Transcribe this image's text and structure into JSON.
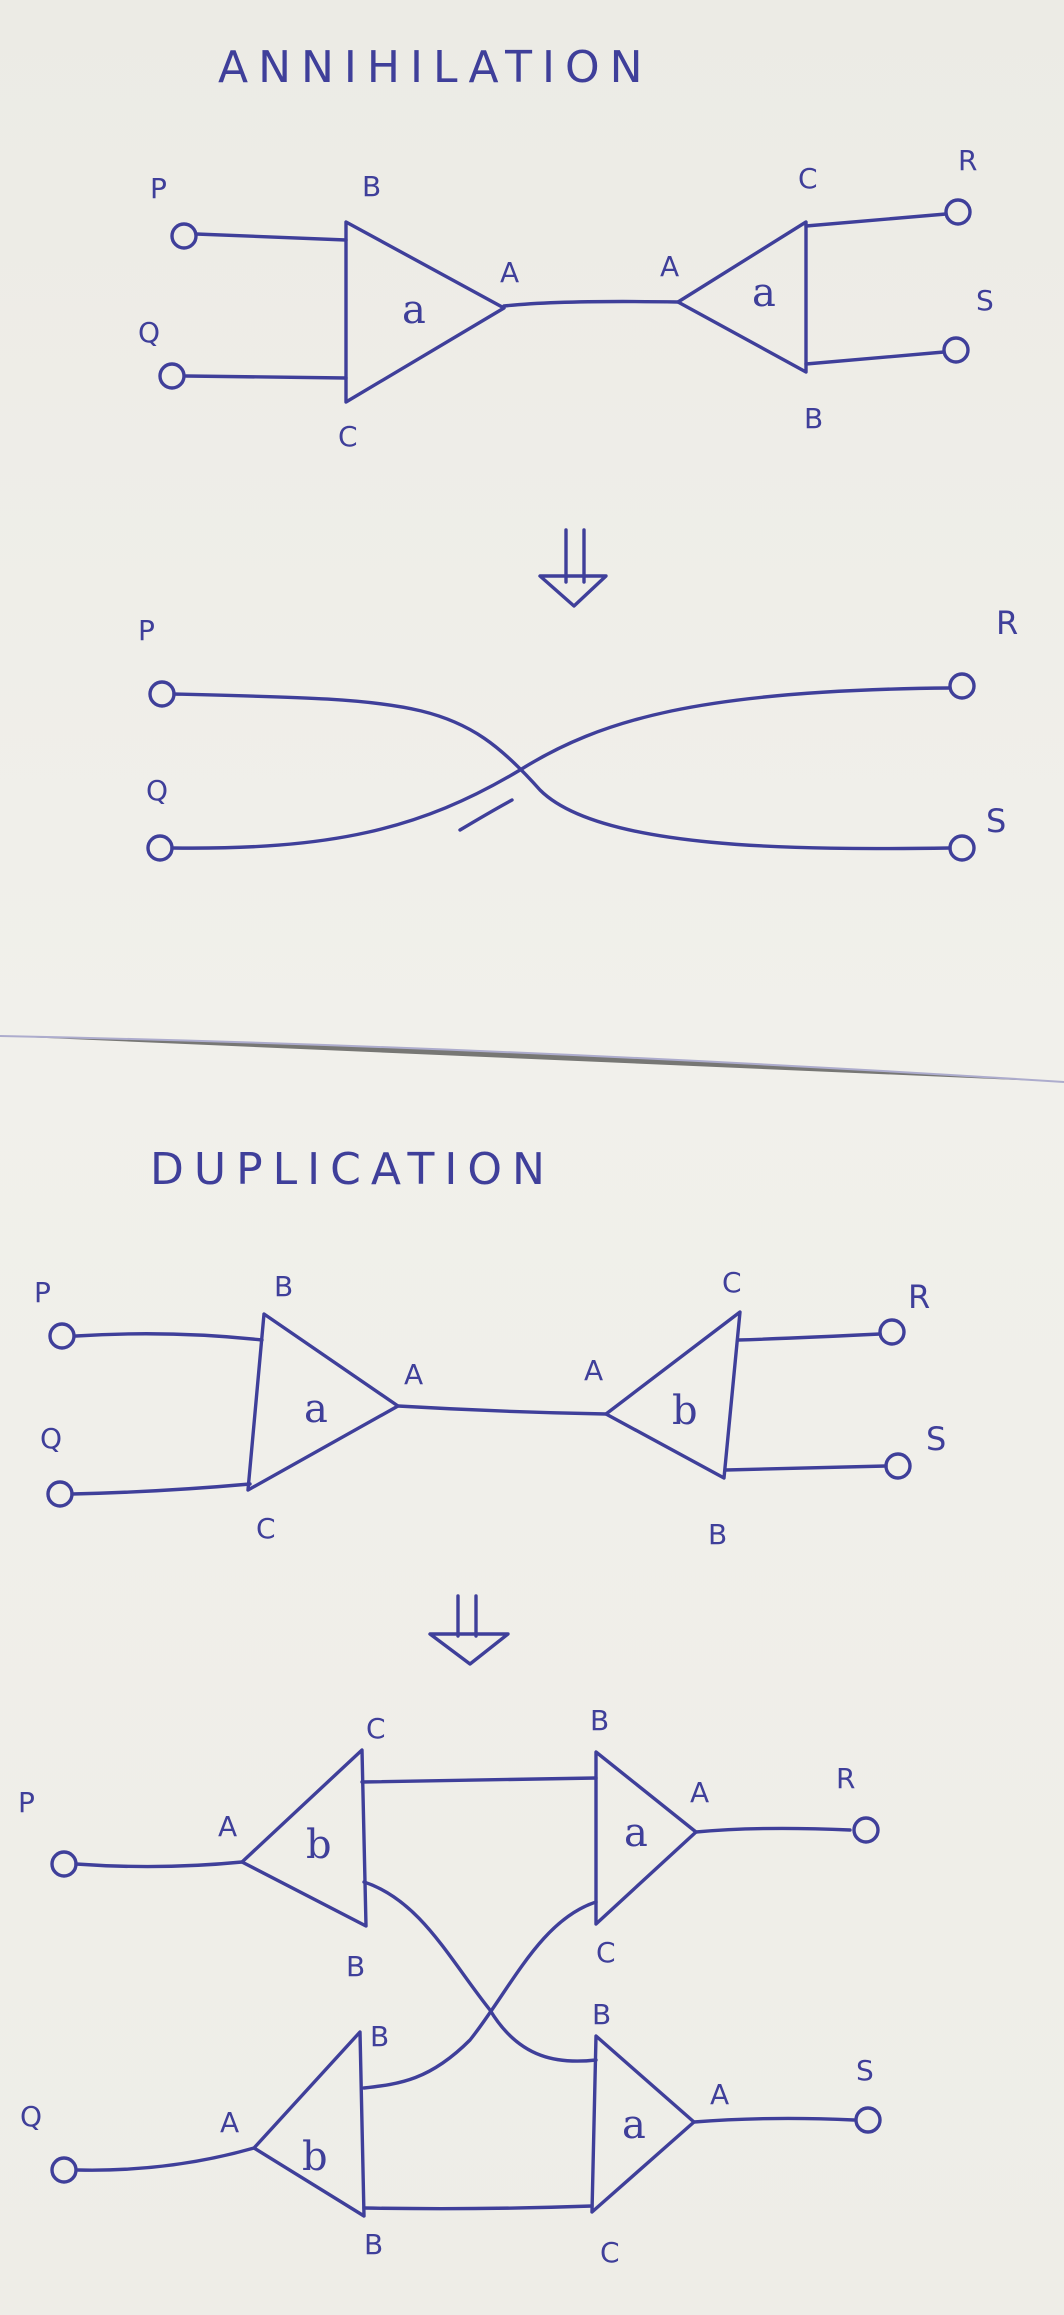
{
  "annihilation": {
    "title": "ANNIHILATION",
    "before": {
      "left_ports": [
        "P",
        "Q"
      ],
      "right_ports": [
        "R",
        "S"
      ],
      "left_agent": {
        "symbol": "a",
        "ports": {
          "principal": "A",
          "top": "B",
          "bottom": "C"
        }
      },
      "right_agent": {
        "symbol": "a",
        "ports": {
          "principal": "A",
          "top": "C",
          "bottom": "B"
        }
      }
    },
    "after": {
      "left_ports": [
        "P",
        "Q"
      ],
      "right_ports": [
        "R",
        "S"
      ]
    }
  },
  "duplication": {
    "title": "DUPLICATION",
    "before": {
      "left_ports": [
        "P",
        "Q"
      ],
      "right_ports": [
        "R",
        "S"
      ],
      "left_agent": {
        "symbol": "a",
        "ports": {
          "principal": "A",
          "top": "B",
          "bottom": "C"
        }
      },
      "right_agent": {
        "symbol": "b",
        "ports": {
          "principal": "A",
          "top": "C",
          "bottom": "B"
        }
      }
    },
    "after": {
      "left_ports": [
        "P",
        "Q"
      ],
      "right_ports": [
        "R",
        "S"
      ],
      "agent_b_top": {
        "symbol": "b",
        "ports": {
          "principal": "A",
          "top": "C",
          "bottom": "B"
        }
      },
      "agent_b_bottom": {
        "symbol": "b",
        "ports": {
          "principal": "A",
          "top": "B",
          "bottom": "B"
        }
      },
      "agent_a_top": {
        "symbol": "a",
        "ports": {
          "principal": "A",
          "top": "B",
          "bottom": "C"
        }
      },
      "agent_a_bottom": {
        "symbol": "a",
        "ports": {
          "principal": "A",
          "top": "B",
          "bottom": "C"
        }
      }
    }
  },
  "colors": {
    "ink": "#3f3f9a",
    "paper": "#efeee9"
  },
  "arrow_icon": "double-down-arrow"
}
